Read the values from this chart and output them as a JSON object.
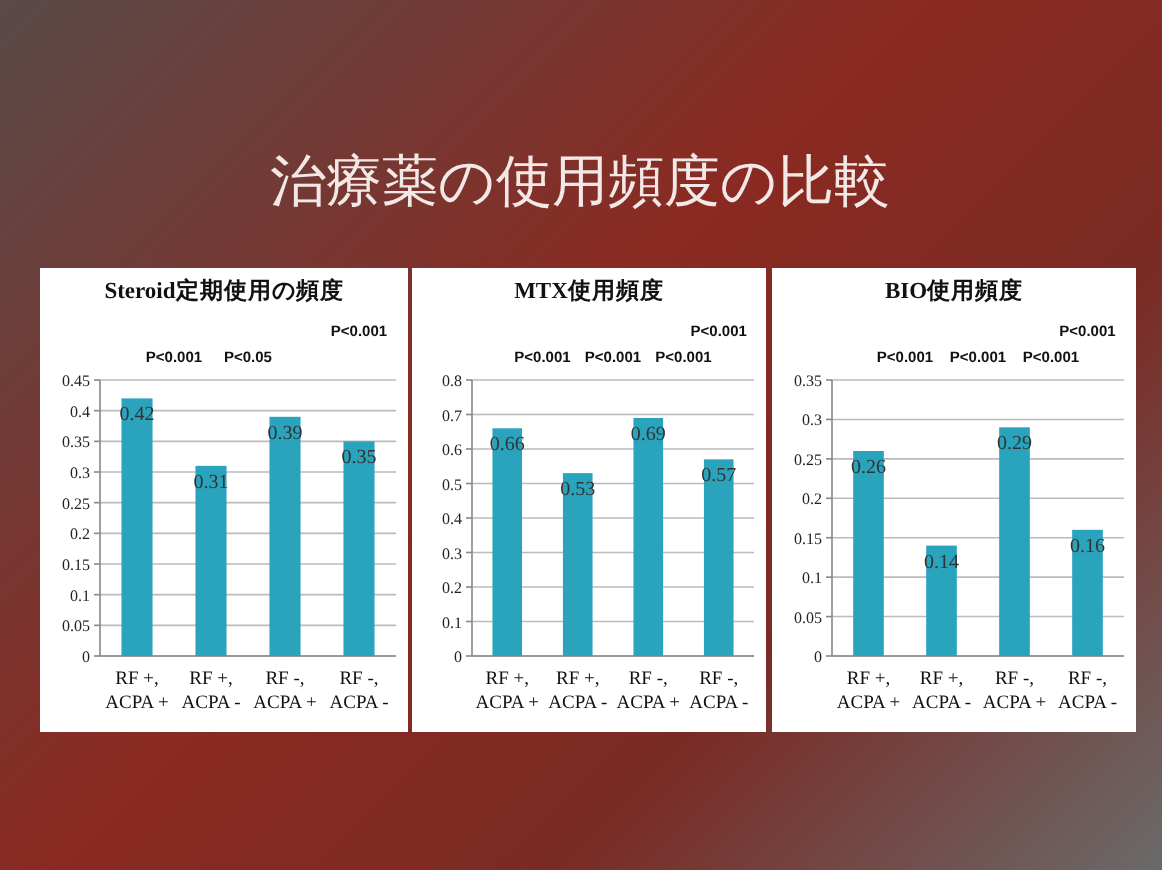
{
  "chart_data": [
    {
      "type": "bar",
      "title": "Steroid定期使用の頻度",
      "categories": [
        "RF +, ACPA +",
        "RF +, ACPA -",
        "RF -, ACPA +",
        "RF -, ACPA -"
      ],
      "values": [
        0.42,
        0.31,
        0.39,
        0.35
      ],
      "color": "#2aa3bd",
      "data_labels": true,
      "ylim": [
        0,
        0.45
      ],
      "yticks": [
        0,
        0.05,
        0.1,
        0.15,
        0.2,
        0.25,
        0.3,
        0.35,
        0.4,
        0.45
      ],
      "grid": "y",
      "annotations": [
        "治療薬の使用頻度の比較",
        "P<0.001",
        "P<0.05",
        "P<0.001"
      ]
    },
    {
      "type": "bar",
      "title": "MTX使用頻度",
      "categories": [
        "RF +, ACPA +",
        "RF +, ACPA -",
        "RF -, ACPA +",
        "RF -, ACPA -"
      ],
      "values": [
        0.66,
        0.53,
        0.69,
        0.57
      ],
      "color": "#2aa3bd",
      "data_labels": true,
      "ylim": [
        0,
        0.8
      ],
      "yticks": [
        0,
        0.1,
        0.2,
        0.3,
        0.4,
        0.5,
        0.6,
        0.7,
        0.8
      ],
      "grid": "y",
      "annotations": [
        "P<0.001",
        "P<0.001",
        "P<0.001",
        "P<0.001"
      ]
    },
    {
      "type": "bar",
      "title": "BIO使用頻度",
      "categories": [
        "RF +, ACPA +",
        "RF +, ACPA -",
        "RF -, ACPA +",
        "RF -, ACPA -"
      ],
      "values": [
        0.26,
        0.14,
        0.29,
        0.16
      ],
      "color": "#2aa3bd",
      "data_labels": true,
      "ylim": [
        0,
        0.35
      ],
      "yticks": [
        0,
        0.05,
        0.1,
        0.15,
        0.2,
        0.25,
        0.3,
        0.35
      ],
      "grid": "y",
      "annotations": [
        "P<0.001",
        "P<0.001",
        "P<0.001",
        "P<0.001"
      ]
    }
  ]
}
